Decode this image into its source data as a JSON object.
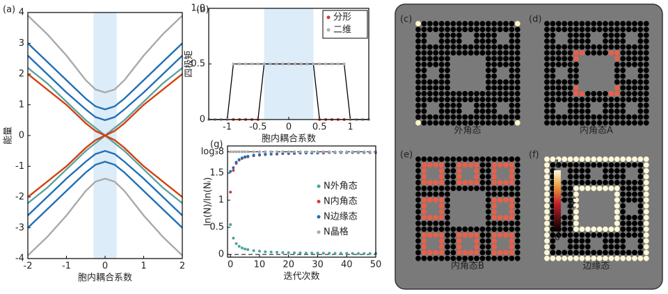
{
  "chart_data": [
    {
      "type": "line",
      "panel_label": "(a)",
      "x_label": "胞内耦合系数",
      "y_label": "能量",
      "x": [
        -2,
        -1.5,
        -1,
        -0.5,
        -0.25,
        0,
        0.25,
        0.5,
        1,
        1.5,
        2
      ],
      "series": [
        {
          "color": "#a9a9a9",
          "values": [
            3.9,
            3.3,
            2.6,
            1.8,
            1.5,
            1.4,
            1.5,
            1.8,
            2.6,
            3.3,
            3.9
          ]
        },
        {
          "color": "#a9a9a9",
          "values": [
            -3.9,
            -3.3,
            -2.6,
            -1.8,
            -1.5,
            -1.4,
            -1.5,
            -1.8,
            -2.6,
            -3.3,
            -3.9
          ]
        },
        {
          "color": "#1f6fb5",
          "values": [
            3.0,
            2.4,
            1.8,
            1.2,
            0.95,
            0.85,
            0.95,
            1.2,
            1.8,
            2.4,
            3.0
          ]
        },
        {
          "color": "#1f6fb5",
          "values": [
            -3.0,
            -2.4,
            -1.8,
            -1.2,
            -0.95,
            -0.85,
            -0.95,
            -1.2,
            -1.8,
            -2.4,
            -3.0
          ]
        },
        {
          "color": "#1f6fb5",
          "values": [
            2.6,
            2.0,
            1.4,
            0.85,
            0.6,
            0.5,
            0.6,
            0.85,
            1.4,
            2.0,
            2.6
          ]
        },
        {
          "color": "#1f6fb5",
          "values": [
            -2.6,
            -2.0,
            -1.4,
            -0.85,
            -0.6,
            -0.5,
            -0.6,
            -0.85,
            -1.4,
            -2.0,
            -2.6
          ]
        },
        {
          "color": "#5aa3a0",
          "values": [
            2.2,
            1.7,
            1.1,
            0.5,
            0.25,
            0.0,
            0.25,
            0.5,
            1.1,
            1.7,
            2.2
          ]
        },
        {
          "color": "#5aa3a0",
          "values": [
            -2.2,
            -1.7,
            -1.1,
            -0.5,
            -0.25,
            0.0,
            -0.25,
            -0.5,
            -1.1,
            -1.7,
            -2.2
          ]
        },
        {
          "color": "#d4400f",
          "values": [
            2.0,
            1.5,
            1.0,
            0.4,
            0.15,
            0.0,
            0.15,
            0.4,
            1.0,
            1.5,
            2.0
          ]
        },
        {
          "color": "#d4400f",
          "values": [
            -2.0,
            -1.5,
            -1.0,
            -0.4,
            -0.15,
            0.0,
            -0.15,
            -0.4,
            -1.0,
            -1.5,
            -2.0
          ]
        }
      ],
      "xlim": [
        -2,
        2
      ],
      "ylim": [
        -4,
        4
      ],
      "xticks": [
        -2,
        -1,
        0,
        1,
        2
      ],
      "yticks": [
        -4,
        -3,
        -2,
        -1,
        0,
        1,
        2,
        3,
        4
      ],
      "shaded_range": [
        -0.3,
        0.3
      ],
      "shaded_color": "#dcecf9"
    },
    {
      "type": "line",
      "panel_label": "(b)",
      "x_label": "胞内耦合系数",
      "y_label": "四极矩",
      "x": [
        -1.3,
        -1.2,
        -1.1,
        -1.0,
        -0.9,
        -0.8,
        -0.7,
        -0.6,
        -0.5,
        -0.4,
        -0.3,
        -0.2,
        -0.1,
        0,
        0.1,
        0.2,
        0.3,
        0.4,
        0.5,
        0.6,
        0.7,
        0.8,
        0.9,
        1.0,
        1.1,
        1.2,
        1.3
      ],
      "series": [
        {
          "name": "分形",
          "color": "#d63a2f",
          "values": [
            0,
            0,
            0,
            0,
            0,
            0,
            0,
            0,
            0,
            0.5,
            0.5,
            0.5,
            0.5,
            0.5,
            0.5,
            0.5,
            0.5,
            0.5,
            0,
            0,
            0,
            0,
            0,
            0,
            0,
            0,
            0
          ]
        },
        {
          "name": "二维",
          "color": "#b0b0b0",
          "values": [
            0,
            0,
            0,
            0,
            0.5,
            0.5,
            0.5,
            0.5,
            0.5,
            0.5,
            0.5,
            0.5,
            0.5,
            0.5,
            0.5,
            0.5,
            0.5,
            0.5,
            0.5,
            0.5,
            0.5,
            0.5,
            0.5,
            0,
            0,
            0,
            0
          ]
        }
      ],
      "line_color": "#000000",
      "markers": true,
      "legend": "upper right",
      "xlim": [
        -1.3,
        1.3
      ],
      "ylim": [
        0,
        1
      ],
      "xticks": [
        -1,
        -0.5,
        0,
        0.5,
        1
      ],
      "yticks": [
        0,
        0.5,
        {
          "value": 1,
          "label": "1.0"
        }
      ],
      "shaded_range": [
        -0.4,
        0.4
      ],
      "shaded_color": "#dcecf9"
    },
    {
      "type": "scatter",
      "panel_label": "(g)",
      "x_label": "迭代次数",
      "y_label": "ln(N)/ln(Nᵢ)",
      "x": [
        0,
        1,
        2,
        3,
        4,
        5,
        6,
        8,
        10,
        12,
        14,
        16,
        18,
        20,
        22,
        24,
        26,
        28,
        30,
        32,
        34,
        36,
        38,
        40,
        42,
        44,
        46,
        48,
        50
      ],
      "series": [
        {
          "name": "N外角态",
          "color": "#4aa3a0",
          "values": [
            0.55,
            0.3,
            0.2,
            0.15,
            0.12,
            0.1,
            0.09,
            0.07,
            0.06,
            0.05,
            0.045,
            0.04,
            0.035,
            0.033,
            0.03,
            0.028,
            0.026,
            0.025,
            0.024,
            0.023,
            0.022,
            0.021,
            0.02,
            0.02,
            0.019,
            0.018,
            0.018,
            0.017,
            0.017
          ]
        },
        {
          "name": "N内角态",
          "color": "#d63a2f",
          "values": [
            1.15,
            1.55,
            1.68,
            1.74,
            1.77,
            1.79,
            1.8,
            1.82,
            1.83,
            1.84,
            1.85,
            1.85,
            1.86,
            1.86,
            1.86,
            1.87,
            1.87,
            1.87,
            1.87,
            1.87,
            1.88,
            1.88,
            1.88,
            1.88,
            1.88,
            1.88,
            1.88,
            1.88,
            1.88
          ]
        },
        {
          "name": "N边缘态",
          "color": "#1f6fb5",
          "values": [
            1.53,
            1.6,
            1.7,
            1.75,
            1.78,
            1.8,
            1.81,
            1.83,
            1.84,
            1.85,
            1.85,
            1.86,
            1.86,
            1.86,
            1.87,
            1.87,
            1.87,
            1.87,
            1.87,
            1.88,
            1.88,
            1.88,
            1.88,
            1.88,
            1.88,
            1.88,
            1.88,
            1.88,
            1.88
          ]
        },
        {
          "name": "N晶格",
          "color": "#a9a9a9",
          "values": [
            1.893,
            1.893,
            1.893,
            1.893,
            1.893,
            1.893,
            1.893,
            1.893,
            1.893,
            1.893,
            1.893,
            1.893,
            1.893,
            1.893,
            1.893,
            1.893,
            1.893,
            1.893,
            1.893,
            1.893,
            1.893,
            1.893,
            1.893,
            1.893,
            1.893,
            1.893,
            1.893,
            1.893,
            1.893
          ]
        }
      ],
      "legend": "center right",
      "ref_lines": [
        1.893,
        0
      ],
      "xlim": [
        -1,
        50
      ],
      "ylim": [
        -0.05,
        2
      ],
      "xticks": [
        0,
        10,
        20,
        30,
        40,
        50
      ],
      "yticks": [
        0,
        0.5,
        1,
        1.5,
        {
          "value": 1.893,
          "label": "log₃8"
        }
      ]
    }
  ],
  "lattice": {
    "panels": [
      {
        "label": "(c)",
        "caption": "外角态"
      },
      {
        "label": "(d)",
        "caption": "内角态A"
      },
      {
        "label": "(e)",
        "caption": "内角态B"
      },
      {
        "label": "(f)",
        "caption": "边缘态"
      }
    ],
    "colorbar": {
      "title": "|ψ|²",
      "max_label": "1",
      "min_label": "0"
    }
  }
}
